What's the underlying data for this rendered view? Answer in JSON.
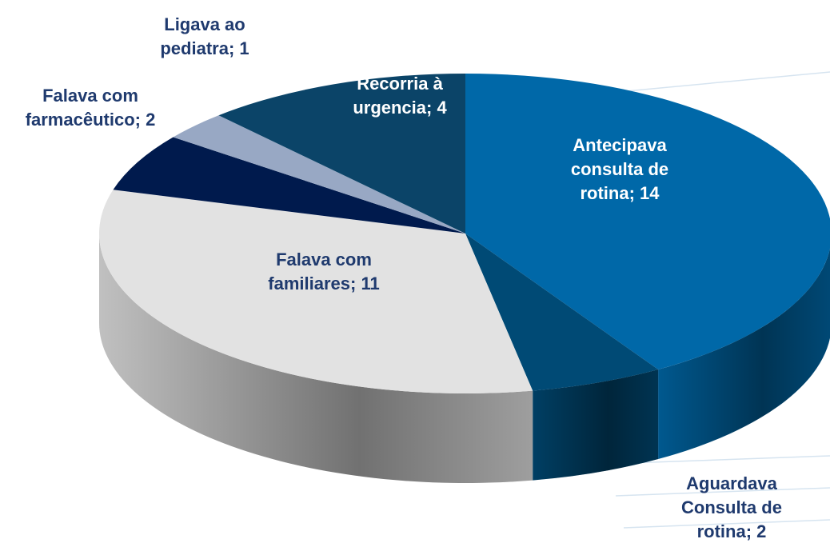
{
  "chart_data": {
    "type": "pie3d",
    "categories": [
      "Antecipava consulta de rotina; 14",
      "Aguardava Consulta de rotina; 2",
      "Falava  com familiares; 11",
      "Falava com farmacêutico; 2",
      "Ligava ao pediatra; 1",
      "Recorria  à urgencia; 4"
    ],
    "values": [
      14,
      2,
      11,
      2,
      1,
      4
    ],
    "colors": [
      "#0068a8",
      "#004a75",
      "#e2e2e2",
      "#001a4d",
      "#98a8c4",
      "#0b4468"
    ]
  }
}
